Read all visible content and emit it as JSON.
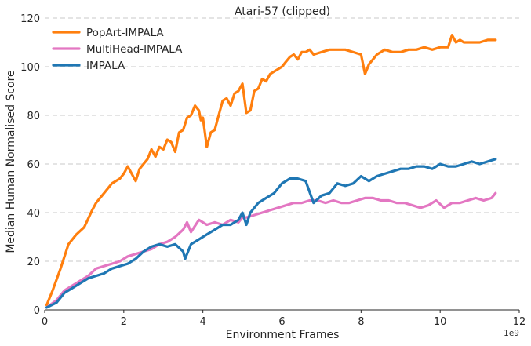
{
  "chart_data": {
    "type": "line",
    "title": "Atari-57 (clipped)",
    "xlabel": "Environment Frames",
    "ylabel": "Median Human Normalised Score",
    "x_scale_label": "1e9",
    "xlim": [
      0,
      12
    ],
    "ylim": [
      0,
      120
    ],
    "xticks": [
      0,
      2,
      4,
      6,
      8,
      10,
      12
    ],
    "yticks": [
      0,
      20,
      40,
      60,
      80,
      100,
      120
    ],
    "grid": "horizontal dashed",
    "legend_position": "top-left",
    "series": [
      {
        "name": "PopArt-IMPALA",
        "color": "#ff7f0e",
        "x": [
          0.05,
          0.2,
          0.4,
          0.6,
          0.8,
          1.0,
          1.2,
          1.3,
          1.5,
          1.7,
          1.9,
          2.0,
          2.1,
          2.3,
          2.4,
          2.5,
          2.6,
          2.7,
          2.8,
          2.9,
          3.0,
          3.1,
          3.2,
          3.3,
          3.4,
          3.5,
          3.6,
          3.7,
          3.8,
          3.9,
          3.95,
          4.0,
          4.1,
          4.2,
          4.3,
          4.4,
          4.5,
          4.6,
          4.7,
          4.8,
          4.9,
          5.0,
          5.1,
          5.2,
          5.3,
          5.4,
          5.5,
          5.6,
          5.7,
          5.8,
          5.9,
          6.0,
          6.1,
          6.2,
          6.3,
          6.4,
          6.5,
          6.6,
          6.7,
          6.8,
          7.0,
          7.2,
          7.4,
          7.6,
          7.8,
          8.0,
          8.1,
          8.2,
          8.3,
          8.4,
          8.6,
          8.8,
          9.0,
          9.2,
          9.4,
          9.6,
          9.8,
          10.0,
          10.2,
          10.3,
          10.4,
          10.5,
          10.6,
          10.8,
          11.0,
          11.2,
          11.4
        ],
        "y": [
          2,
          8,
          17,
          27,
          31,
          34,
          41,
          44,
          48,
          52,
          54,
          56,
          59,
          53,
          58,
          60,
          62,
          66,
          63,
          67,
          66,
          70,
          69,
          65,
          73,
          74,
          79,
          80,
          84,
          82,
          78,
          79,
          67,
          73,
          74,
          80,
          86,
          87,
          84,
          89,
          90,
          93,
          81,
          82,
          90,
          91,
          95,
          94,
          97,
          98,
          99,
          100,
          102,
          104,
          105,
          103,
          106,
          106,
          107,
          105,
          106,
          107,
          107,
          107,
          106,
          105,
          97,
          101,
          103,
          105,
          107,
          106,
          106,
          107,
          107,
          108,
          107,
          108,
          108,
          113,
          110,
          111,
          110,
          110,
          110,
          111,
          111
        ]
      },
      {
        "name": "MultiHead-IMPALA",
        "color": "#e377c2",
        "x": [
          0.05,
          0.3,
          0.5,
          0.7,
          0.9,
          1.1,
          1.3,
          1.5,
          1.7,
          1.9,
          2.1,
          2.3,
          2.5,
          2.7,
          2.9,
          3.1,
          3.3,
          3.5,
          3.6,
          3.7,
          3.9,
          4.1,
          4.3,
          4.5,
          4.7,
          4.9,
          5.0,
          5.1,
          5.3,
          5.5,
          5.7,
          5.9,
          6.1,
          6.3,
          6.5,
          6.7,
          6.9,
          7.1,
          7.3,
          7.5,
          7.7,
          7.9,
          8.1,
          8.3,
          8.5,
          8.7,
          8.9,
          9.1,
          9.3,
          9.5,
          9.7,
          9.9,
          10.1,
          10.3,
          10.5,
          10.7,
          10.9,
          11.1,
          11.3,
          11.4
        ],
        "y": [
          1,
          4,
          8,
          10,
          12,
          14,
          17,
          18,
          19,
          20,
          22,
          23,
          24,
          25,
          27,
          28,
          30,
          33,
          36,
          32,
          37,
          35,
          36,
          35,
          37,
          36,
          38,
          38,
          39,
          40,
          41,
          42,
          43,
          44,
          44,
          45,
          45,
          44,
          45,
          44,
          44,
          45,
          46,
          46,
          45,
          45,
          44,
          44,
          43,
          42,
          43,
          45,
          42,
          44,
          44,
          45,
          46,
          45,
          46,
          48
        ]
      },
      {
        "name": "IMPALA",
        "color": "#1f77b4",
        "x": [
          0.05,
          0.3,
          0.5,
          0.7,
          0.9,
          1.1,
          1.3,
          1.5,
          1.7,
          1.9,
          2.1,
          2.3,
          2.5,
          2.7,
          2.9,
          3.1,
          3.3,
          3.5,
          3.55,
          3.7,
          3.9,
          4.1,
          4.3,
          4.5,
          4.7,
          4.9,
          5.0,
          5.1,
          5.2,
          5.4,
          5.6,
          5.8,
          6.0,
          6.2,
          6.4,
          6.6,
          6.8,
          7.0,
          7.2,
          7.4,
          7.6,
          7.8,
          8.0,
          8.2,
          8.4,
          8.6,
          8.8,
          9.0,
          9.2,
          9.4,
          9.6,
          9.8,
          10.0,
          10.2,
          10.4,
          10.6,
          10.8,
          11.0,
          11.2,
          11.4
        ],
        "y": [
          1,
          3,
          7,
          9,
          11,
          13,
          14,
          15,
          17,
          18,
          19,
          21,
          24,
          26,
          27,
          26,
          27,
          24,
          21,
          27,
          29,
          31,
          33,
          35,
          35,
          37,
          40,
          35,
          40,
          44,
          46,
          48,
          52,
          54,
          54,
          53,
          44,
          47,
          48,
          52,
          51,
          52,
          55,
          53,
          55,
          56,
          57,
          58,
          58,
          59,
          59,
          58,
          60,
          59,
          59,
          60,
          61,
          60,
          61,
          62
        ]
      }
    ]
  }
}
